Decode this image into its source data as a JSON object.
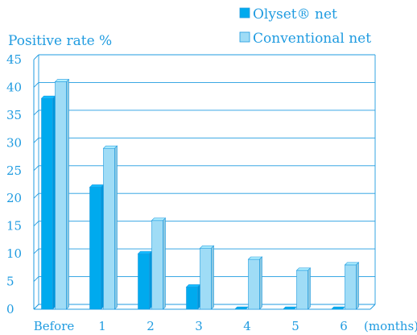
{
  "chart_data": {
    "type": "bar",
    "ylabel": "Positive rate %",
    "xlabel": "(months)",
    "categories": [
      "Before",
      "1",
      "2",
      "3",
      "4",
      "5",
      "6"
    ],
    "series": [
      {
        "name": "Olyset® net",
        "values": [
          38,
          22,
          10,
          4,
          0,
          0,
          0
        ]
      },
      {
        "name": "Conventional net",
        "values": [
          41,
          29,
          16,
          11,
          9,
          7,
          8
        ]
      }
    ],
    "ylim": [
      0,
      45
    ],
    "yticks": [
      0,
      5,
      10,
      15,
      20,
      25,
      30,
      35,
      40,
      45
    ],
    "grid": true,
    "legend_placement": "top-right",
    "colors": {
      "series_1": "#00aaee",
      "series_2": "#9fdcf6",
      "axis": "#1f9be0",
      "text": "#1f9be0"
    }
  }
}
